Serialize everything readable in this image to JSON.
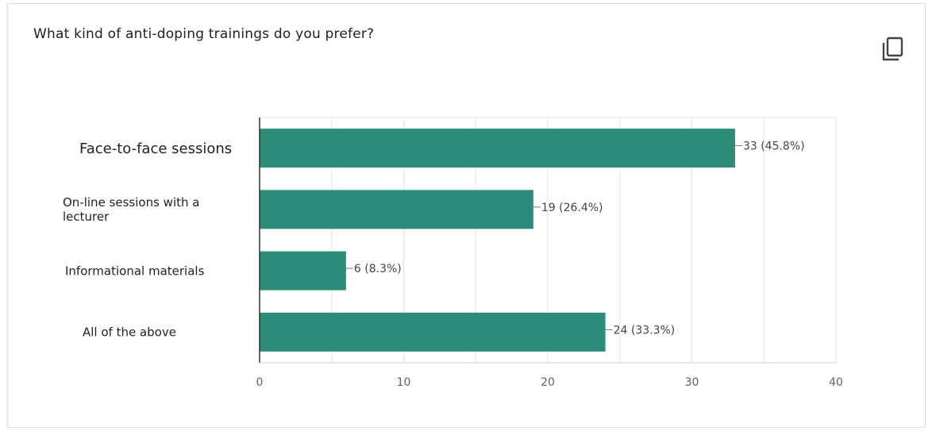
{
  "question": "What kind of anti-doping trainings do you prefer?",
  "icons": {
    "copy": "copy-icon"
  },
  "colors": {
    "bar": "#2b8c7a",
    "grid": "#e6e6e6",
    "axis": "#333333"
  },
  "chart_data": {
    "type": "bar",
    "orientation": "horizontal",
    "title": "",
    "xlabel": "",
    "ylabel": "",
    "xlim": [
      0,
      40
    ],
    "ticks": [
      "0",
      "10",
      "20",
      "30",
      "40"
    ],
    "grid": true,
    "categories": [
      [
        "Face-to-face sessions"
      ],
      [
        "On-line sessions with a",
        "lecturer"
      ],
      [
        "Informational materials"
      ],
      [
        "All of the above"
      ]
    ],
    "values": [
      33,
      19,
      6,
      24
    ],
    "labels": [
      "33 (45.8%)",
      "19 (26.4%)",
      "6 (8.3%)",
      "24 (33.3%)"
    ]
  }
}
